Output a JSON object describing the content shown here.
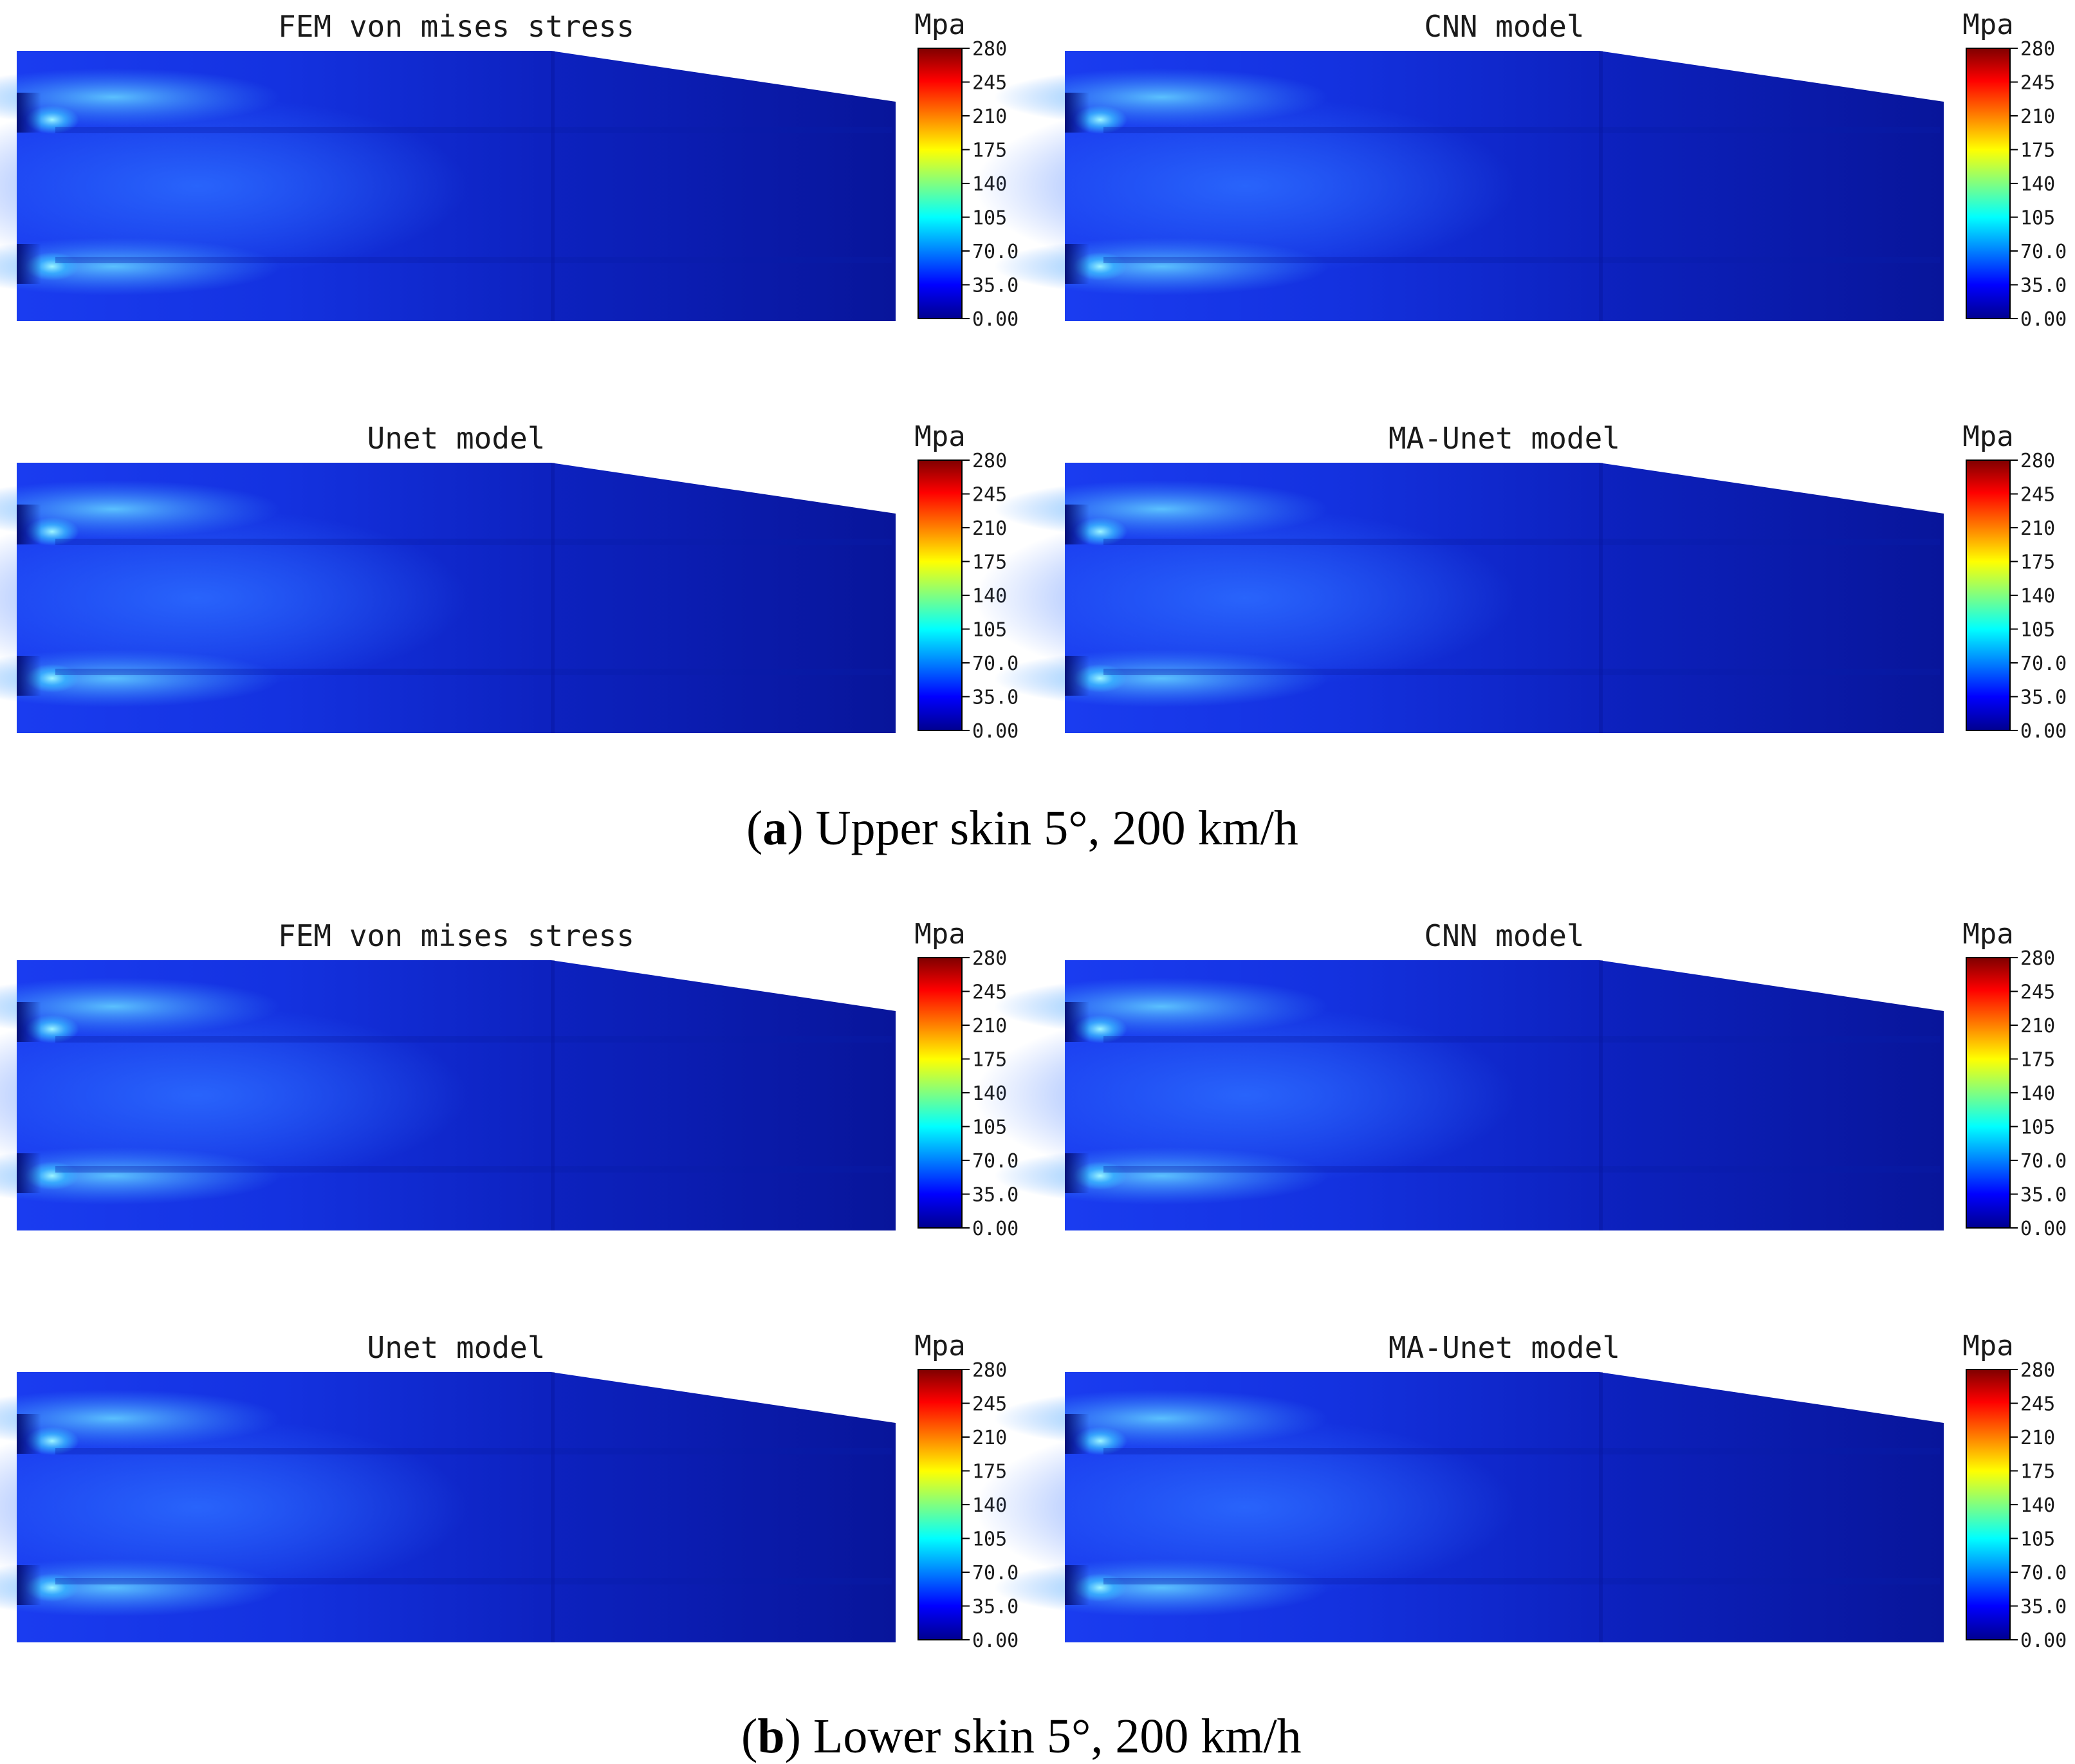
{
  "colorbar": {
    "unit": "Mpa",
    "ticks": [
      "280",
      "245",
      "210",
      "175",
      "140",
      "105",
      "70.0",
      "35.0",
      "0.00"
    ],
    "colors": [
      "#7f0000",
      "#ff0000",
      "#ff8000",
      "#ffff00",
      "#80ff80",
      "#00ffff",
      "#0080ff",
      "#0000ff",
      "#00008f"
    ]
  },
  "sections": [
    {
      "caption_letter": "a",
      "caption_text": "Upper skin 5°, 200 km/h",
      "panels": [
        {
          "title": "FEM von mises stress"
        },
        {
          "title": "CNN model"
        },
        {
          "title": "Unet model"
        },
        {
          "title": "MA-Unet model"
        }
      ]
    },
    {
      "caption_letter": "b",
      "caption_text": "Lower skin 5°, 200 km/h",
      "panels": [
        {
          "title": "FEM von mises stress"
        },
        {
          "title": "CNN model"
        },
        {
          "title": "Unet model"
        },
        {
          "title": "MA-Unet model"
        }
      ]
    }
  ]
}
